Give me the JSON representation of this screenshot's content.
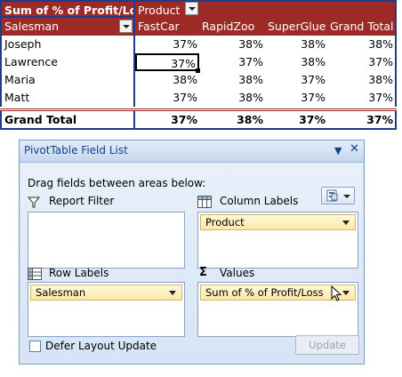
{
  "pivot": {
    "data_field_label": "Sum of % of Profit/Loss",
    "column_field_label": "Product",
    "row_field_label": "Salesman",
    "columns": [
      "FastCar",
      "RapidZoo",
      "SuperGlue",
      "Grand Total"
    ],
    "rows": [
      {
        "name": "Joseph",
        "values": [
          "37%",
          "38%",
          "38%",
          "38%"
        ]
      },
      {
        "name": "Lawrence",
        "values": [
          "37%",
          "37%",
          "38%",
          "37%"
        ]
      },
      {
        "name": "Maria",
        "values": [
          "38%",
          "38%",
          "37%",
          "38%"
        ]
      },
      {
        "name": "Matt",
        "values": [
          "37%",
          "38%",
          "37%",
          "37%"
        ]
      }
    ],
    "grand_total": {
      "name": "Grand Total",
      "values": [
        "37%",
        "38%",
        "37%",
        "37%"
      ]
    },
    "colors": {
      "header_bg": "#9c2b28",
      "header_text": "#ffffff",
      "border": "#1f3c88"
    }
  },
  "field_list": {
    "title": "PivotTable Field List",
    "instruction": "Drag fields between areas below:",
    "report_filter_label": "Report Filter",
    "column_labels_label": "Column Labels",
    "row_labels_label": "Row Labels",
    "values_label": "Values",
    "column_field": "Product",
    "row_field": "Salesman",
    "value_field": "Sum of % of Profit/Loss",
    "defer_label": "Defer Layout Update",
    "update_button": "Update",
    "defer_checked": false
  }
}
